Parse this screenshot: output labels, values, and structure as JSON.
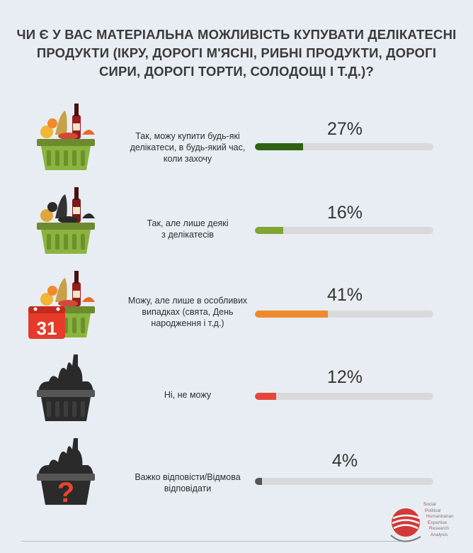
{
  "title": "ЧИ Є У ВАС МАТЕРІАЛЬНА МОЖЛИВІСТЬ КУПУВАТИ ДЕЛІКАТЕСНІ ПРОДУКТИ (ІКРУ, ДОРОГІ М'ЯСНІ, РИБНІ ПРОДУКТИ, ДОРОГІ СИРИ, ДОРОГІ ТОРТИ, СОЛОДОЩІ І Т.Д.)?",
  "chart_data": {
    "type": "bar",
    "title": "ЧИ Є У ВАС МАТЕРІАЛЬНА МОЖЛИВІСТЬ КУПУВАТИ ДЕЛІКАТЕСНІ ПРОДУКТИ (ІКРУ, ДОРОГІ М'ЯСНІ, РИБНІ ПРОДУКТИ, ДОРОГІ СИРИ, ДОРОГІ ТОРТИ, СОЛОДОЩІ І Т.Д.)?",
    "categories": [
      "Так, можу купити будь-які делікатеси, в будь-який час, коли захочу",
      "Так, але лише деякі з делікатесів",
      "Можу, але лише в особливих випадках (свята, День народження і т.д.)",
      "Ні, не можу",
      "Важко відповісти/Відмова відповідати"
    ],
    "values": [
      27,
      16,
      41,
      12,
      4
    ],
    "value_labels": [
      "27%",
      "16%",
      "41%",
      "12%",
      "4%"
    ],
    "colors": [
      "#2f6214",
      "#7fa532",
      "#ef8a2c",
      "#e4473a",
      "#555555"
    ],
    "ylim": [
      0,
      100
    ]
  },
  "rows": [
    {
      "label_lines": [
        "Так, можу купити будь-які",
        "делікатеси, в будь-який час,",
        "коли захочу"
      ],
      "pct": "27%",
      "icon": "full-basket-icon"
    },
    {
      "label_lines": [
        "Так, але лише деякі",
        "з делікатесів"
      ],
      "pct": "16%",
      "icon": "partial-basket-icon"
    },
    {
      "label_lines": [
        "Можу, але лише в особливих",
        "випадках (свята, День",
        "народження і т.д.)"
      ],
      "pct": "41%",
      "icon": "calendar-basket-icon",
      "calendar": "31"
    },
    {
      "label_lines": [
        "Ні, не можу"
      ],
      "pct": "12%",
      "icon": "empty-basket-icon"
    },
    {
      "label_lines": [
        "Важко відповісти/Відмова",
        "відповідати"
      ],
      "pct": "4%",
      "icon": "question-basket-icon",
      "question": "?"
    }
  ],
  "logo": {
    "lines": [
      "Social",
      "Political",
      "Humanitarian",
      "Expertise",
      "Research",
      "Analysis"
    ]
  }
}
